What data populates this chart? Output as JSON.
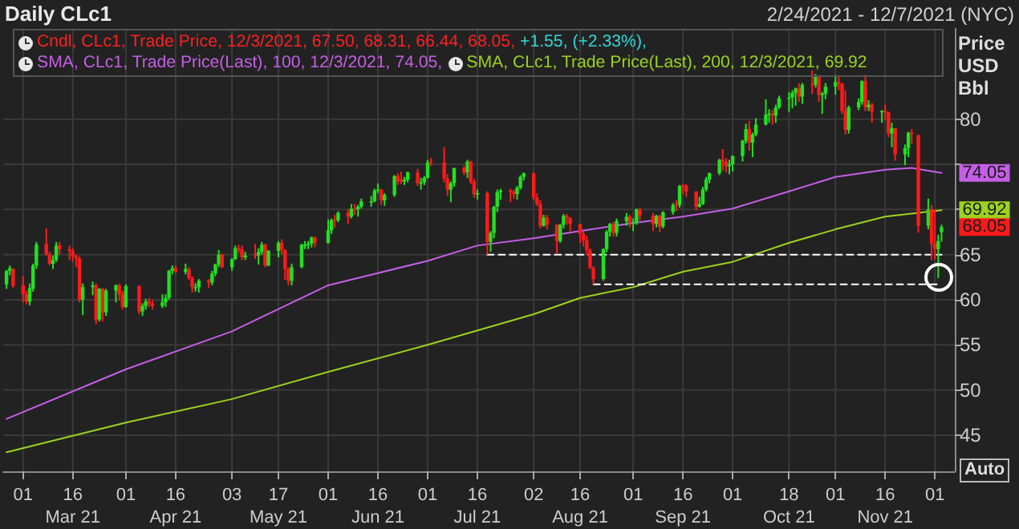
{
  "chart_data": {
    "type": "candlestick",
    "title": "Daily CLc1",
    "subtitle": "2/24/2021 - 12/7/2021 (NYC)",
    "ylabel": "Price USD Bbl",
    "x": [
      "2021-02-24",
      "2021-02-25",
      "2021-02-26",
      "2021-03-01",
      "2021-03-02",
      "2021-03-03",
      "2021-03-04",
      "2021-03-05",
      "2021-03-08",
      "2021-03-09",
      "2021-03-10",
      "2021-03-11",
      "2021-03-12",
      "2021-03-15",
      "2021-03-16",
      "2021-03-17",
      "2021-03-18",
      "2021-03-19",
      "2021-03-22",
      "2021-03-23",
      "2021-03-24",
      "2021-03-25",
      "2021-03-26",
      "2021-03-29",
      "2021-03-30",
      "2021-03-31",
      "2021-04-01",
      "2021-04-05",
      "2021-04-06",
      "2021-04-07",
      "2021-04-08",
      "2021-04-09",
      "2021-04-12",
      "2021-04-13",
      "2021-04-14",
      "2021-04-15",
      "2021-04-16",
      "2021-04-19",
      "2021-04-20",
      "2021-04-21",
      "2021-04-22",
      "2021-04-23",
      "2021-04-26",
      "2021-04-27",
      "2021-04-28",
      "2021-04-29",
      "2021-04-30",
      "2021-05-03",
      "2021-05-04",
      "2021-05-05",
      "2021-05-06",
      "2021-05-07",
      "2021-05-10",
      "2021-05-11",
      "2021-05-12",
      "2021-05-13",
      "2021-05-14",
      "2021-05-17",
      "2021-05-18",
      "2021-05-19",
      "2021-05-20",
      "2021-05-21",
      "2021-05-24",
      "2021-05-25",
      "2021-05-26",
      "2021-05-27",
      "2021-05-28",
      "2021-06-01",
      "2021-06-02",
      "2021-06-03",
      "2021-06-04",
      "2021-06-07",
      "2021-06-08",
      "2021-06-09",
      "2021-06-10",
      "2021-06-11",
      "2021-06-14",
      "2021-06-15",
      "2021-06-16",
      "2021-06-17",
      "2021-06-18",
      "2021-06-21",
      "2021-06-22",
      "2021-06-23",
      "2021-06-24",
      "2021-06-25",
      "2021-06-28",
      "2021-06-29",
      "2021-06-30",
      "2021-07-01",
      "2021-07-02",
      "2021-07-06",
      "2021-07-07",
      "2021-07-08",
      "2021-07-09",
      "2021-07-12",
      "2021-07-13",
      "2021-07-14",
      "2021-07-15",
      "2021-07-16",
      "2021-07-19",
      "2021-07-20",
      "2021-07-21",
      "2021-07-22",
      "2021-07-23",
      "2021-07-26",
      "2021-07-27",
      "2021-07-28",
      "2021-07-29",
      "2021-07-30",
      "2021-08-02",
      "2021-08-03",
      "2021-08-04",
      "2021-08-05",
      "2021-08-06",
      "2021-08-09",
      "2021-08-10",
      "2021-08-11",
      "2021-08-12",
      "2021-08-13",
      "2021-08-16",
      "2021-08-17",
      "2021-08-18",
      "2021-08-19",
      "2021-08-20",
      "2021-08-23",
      "2021-08-24",
      "2021-08-25",
      "2021-08-26",
      "2021-08-27",
      "2021-08-30",
      "2021-08-31",
      "2021-09-01",
      "2021-09-02",
      "2021-09-03",
      "2021-09-07",
      "2021-09-08",
      "2021-09-09",
      "2021-09-10",
      "2021-09-13",
      "2021-09-14",
      "2021-09-15",
      "2021-09-16",
      "2021-09-17",
      "2021-09-20",
      "2021-09-21",
      "2021-09-22",
      "2021-09-23",
      "2021-09-24",
      "2021-09-27",
      "2021-09-28",
      "2021-09-29",
      "2021-09-30",
      "2021-10-01",
      "2021-10-04",
      "2021-10-05",
      "2021-10-06",
      "2021-10-07",
      "2021-10-08",
      "2021-10-11",
      "2021-10-12",
      "2021-10-13",
      "2021-10-14",
      "2021-10-15",
      "2021-10-18",
      "2021-10-19",
      "2021-10-20",
      "2021-10-21",
      "2021-10-22",
      "2021-10-25",
      "2021-10-26",
      "2021-10-27",
      "2021-10-28",
      "2021-10-29",
      "2021-11-01",
      "2021-11-02",
      "2021-11-03",
      "2021-11-04",
      "2021-11-05",
      "2021-11-08",
      "2021-11-09",
      "2021-11-10",
      "2021-11-11",
      "2021-11-12",
      "2021-11-15",
      "2021-11-16",
      "2021-11-17",
      "2021-11-18",
      "2021-11-19",
      "2021-11-22",
      "2021-11-23",
      "2021-11-24",
      "2021-11-26",
      "2021-11-29",
      "2021-11-30",
      "2021-12-01",
      "2021-12-02",
      "2021-12-03"
    ],
    "series": [
      {
        "name": "Cndl, CLc1, Trade Price, 12/3/2021, 67.50, 68.31, 66.44, 68.05,",
        "ohlc": [
          [
            61.7,
            63.3,
            61.2,
            63.2
          ],
          [
            63.2,
            63.8,
            62.7,
            63.5
          ],
          [
            63.4,
            63.5,
            61.3,
            61.5
          ],
          [
            61.6,
            62.6,
            59.7,
            60.6
          ],
          [
            60.6,
            61.0,
            59.5,
            59.8
          ],
          [
            59.8,
            61.8,
            59.4,
            61.3
          ],
          [
            61.2,
            64.0,
            60.9,
            63.8
          ],
          [
            63.8,
            66.4,
            63.4,
            66.1
          ],
          [
            66.2,
            67.9,
            64.9,
            65.0
          ],
          [
            65.0,
            65.3,
            63.8,
            64.0
          ],
          [
            64.0,
            64.9,
            63.4,
            64.4
          ],
          [
            64.4,
            66.4,
            64.2,
            66.0
          ],
          [
            66.0,
            66.4,
            65.0,
            65.6
          ],
          [
            65.6,
            66.0,
            64.4,
            65.4
          ],
          [
            65.4,
            65.7,
            64.2,
            64.8
          ],
          [
            64.8,
            65.0,
            63.6,
            64.6
          ],
          [
            64.6,
            64.8,
            59.7,
            60.0
          ],
          [
            60.0,
            61.8,
            58.3,
            61.4
          ],
          [
            61.4,
            62.0,
            60.5,
            61.6
          ],
          [
            61.6,
            61.8,
            57.3,
            57.8
          ],
          [
            57.8,
            61.3,
            57.6,
            61.2
          ],
          [
            61.2,
            61.3,
            57.6,
            58.6
          ],
          [
            58.6,
            61.2,
            58.2,
            61.0
          ],
          [
            61.0,
            61.7,
            59.7,
            61.6
          ],
          [
            61.6,
            61.8,
            59.9,
            60.6
          ],
          [
            60.6,
            61.0,
            58.9,
            59.2
          ],
          [
            59.2,
            61.7,
            59.1,
            61.5
          ],
          [
            61.5,
            61.6,
            58.4,
            58.7
          ],
          [
            58.7,
            59.6,
            58.2,
            59.3
          ],
          [
            59.3,
            60.1,
            58.9,
            59.8
          ],
          [
            59.8,
            60.2,
            59.2,
            59.6
          ],
          [
            59.6,
            60.0,
            58.9,
            59.3
          ],
          [
            59.3,
            60.6,
            59.1,
            59.7
          ],
          [
            59.7,
            60.6,
            59.2,
            60.2
          ],
          [
            60.2,
            63.3,
            60.0,
            63.2
          ],
          [
            63.2,
            63.8,
            62.8,
            63.5
          ],
          [
            63.5,
            63.8,
            62.9,
            63.1
          ],
          [
            63.1,
            64.0,
            62.8,
            63.4
          ],
          [
            63.4,
            63.6,
            62.2,
            62.4
          ],
          [
            62.4,
            62.6,
            60.8,
            61.4
          ],
          [
            61.3,
            61.8,
            60.9,
            61.4
          ],
          [
            61.4,
            62.3,
            60.8,
            62.1
          ],
          [
            62.1,
            62.3,
            61.3,
            61.9
          ],
          [
            61.9,
            63.2,
            61.6,
            62.9
          ],
          [
            62.9,
            64.0,
            62.6,
            63.9
          ],
          [
            63.9,
            65.5,
            63.6,
            65.0
          ],
          [
            65.0,
            65.1,
            63.5,
            63.6
          ],
          [
            63.6,
            64.6,
            63.2,
            64.5
          ],
          [
            64.5,
            66.0,
            64.4,
            65.7
          ],
          [
            65.7,
            66.1,
            65.2,
            65.6
          ],
          [
            65.6,
            66.0,
            64.4,
            64.7
          ],
          [
            64.7,
            65.3,
            64.4,
            64.9
          ],
          [
            65.0,
            66.2,
            64.5,
            64.9
          ],
          [
            64.9,
            65.7,
            63.9,
            65.3
          ],
          [
            65.3,
            66.4,
            65.0,
            66.1
          ],
          [
            66.1,
            66.2,
            63.6,
            63.8
          ],
          [
            63.8,
            65.5,
            63.7,
            65.4
          ],
          [
            65.4,
            66.5,
            64.7,
            66.3
          ],
          [
            66.3,
            66.7,
            65.0,
            65.5
          ],
          [
            65.5,
            65.6,
            62.2,
            63.4
          ],
          [
            63.4,
            63.6,
            61.6,
            62.1
          ],
          [
            62.1,
            64.0,
            61.6,
            63.6
          ],
          [
            63.6,
            66.2,
            63.5,
            66.1
          ],
          [
            66.0,
            66.5,
            65.6,
            66.1
          ],
          [
            66.1,
            66.5,
            65.6,
            66.2
          ],
          [
            66.2,
            67.0,
            65.8,
            66.9
          ],
          [
            66.9,
            67.0,
            65.8,
            66.3
          ],
          [
            66.3,
            68.9,
            66.2,
            67.7
          ],
          [
            67.7,
            69.0,
            67.3,
            68.8
          ],
          [
            68.9,
            69.4,
            68.0,
            68.8
          ],
          [
            68.8,
            69.8,
            68.6,
            69.6
          ],
          [
            69.6,
            70.0,
            68.4,
            69.2
          ],
          [
            69.2,
            70.6,
            69.0,
            70.1
          ],
          [
            70.1,
            70.6,
            69.4,
            70.0
          ],
          [
            70.0,
            70.5,
            69.2,
            70.3
          ],
          [
            70.3,
            71.2,
            70.1,
            70.9
          ],
          [
            70.8,
            71.5,
            70.3,
            70.9
          ],
          [
            70.9,
            72.3,
            70.8,
            72.1
          ],
          [
            72.1,
            72.9,
            71.8,
            72.2
          ],
          [
            72.2,
            72.3,
            70.5,
            71.0
          ],
          [
            71.0,
            71.8,
            70.4,
            71.6
          ],
          [
            71.6,
            73.8,
            71.4,
            73.7
          ],
          [
            73.7,
            74.0,
            72.7,
            73.1
          ],
          [
            73.3,
            74.2,
            72.8,
            73.1
          ],
          [
            73.1,
            73.6,
            72.7,
            73.3
          ],
          [
            73.3,
            74.2,
            73.0,
            74.1
          ],
          [
            74.1,
            74.5,
            72.6,
            72.9
          ],
          [
            72.9,
            73.5,
            72.2,
            73.0
          ],
          [
            73.0,
            73.7,
            72.7,
            73.5
          ],
          [
            73.5,
            75.5,
            73.4,
            75.2
          ],
          [
            75.3,
            75.7,
            74.8,
            75.2
          ],
          [
            75.2,
            76.9,
            73.0,
            73.4
          ],
          [
            73.4,
            73.9,
            71.5,
            72.2
          ],
          [
            72.2,
            73.1,
            70.8,
            72.9
          ],
          [
            72.9,
            74.6,
            72.5,
            74.6
          ],
          [
            74.6,
            74.8,
            73.8,
            74.1
          ],
          [
            74.1,
            75.5,
            73.5,
            75.3
          ],
          [
            75.3,
            75.4,
            72.8,
            73.1
          ],
          [
            73.1,
            73.4,
            71.3,
            71.7
          ],
          [
            71.7,
            72.2,
            71.1,
            71.8
          ],
          [
            71.8,
            72.0,
            65.0,
            66.4
          ],
          [
            66.4,
            67.6,
            65.3,
            67.4
          ],
          [
            67.4,
            70.4,
            66.8,
            70.3
          ],
          [
            70.3,
            72.2,
            69.7,
            71.9
          ],
          [
            71.9,
            72.3,
            71.1,
            72.1
          ],
          [
            72.1,
            72.3,
            70.8,
            71.9
          ],
          [
            71.9,
            72.2,
            71.2,
            71.7
          ],
          [
            71.7,
            72.6,
            71.1,
            72.4
          ],
          [
            72.4,
            73.8,
            72.2,
            73.6
          ],
          [
            73.6,
            74.1,
            73.2,
            74.0
          ],
          [
            74.0,
            74.1,
            71.0,
            71.3
          ],
          [
            71.3,
            71.8,
            70.4,
            70.6
          ],
          [
            70.6,
            71.0,
            67.9,
            68.2
          ],
          [
            68.2,
            69.4,
            68.1,
            69.1
          ],
          [
            69.1,
            69.4,
            67.8,
            68.3
          ],
          [
            68.3,
            68.4,
            65.1,
            66.5
          ],
          [
            66.5,
            68.4,
            66.3,
            68.3
          ],
          [
            68.3,
            69.5,
            67.9,
            69.3
          ],
          [
            69.3,
            69.5,
            68.3,
            69.1
          ],
          [
            69.1,
            69.1,
            67.6,
            68.4
          ],
          [
            68.4,
            68.4,
            66.3,
            67.3
          ],
          [
            67.3,
            67.6,
            65.9,
            66.6
          ],
          [
            66.6,
            67.1,
            65.0,
            65.5
          ],
          [
            65.5,
            65.7,
            63.4,
            63.5
          ],
          [
            63.5,
            63.7,
            61.7,
            62.3
          ],
          [
            62.3,
            65.7,
            62.1,
            65.6
          ],
          [
            65.6,
            67.7,
            65.3,
            67.5
          ],
          [
            67.5,
            68.5,
            67.0,
            68.4
          ],
          [
            68.4,
            68.6,
            67.0,
            67.4
          ],
          [
            67.4,
            69.0,
            67.0,
            68.7
          ],
          [
            68.7,
            69.6,
            68.2,
            69.2
          ],
          [
            69.2,
            69.4,
            68.0,
            68.5
          ],
          [
            68.5,
            69.0,
            67.6,
            68.6
          ],
          [
            68.6,
            70.1,
            68.3,
            70.0
          ],
          [
            70.0,
            70.2,
            68.8,
            69.3
          ],
          [
            69.3,
            69.6,
            67.6,
            68.4
          ],
          [
            68.4,
            69.4,
            68.0,
            69.3
          ],
          [
            69.3,
            69.4,
            67.5,
            68.1
          ],
          [
            68.1,
            69.8,
            67.9,
            69.7
          ],
          [
            69.7,
            70.7,
            69.4,
            70.5
          ],
          [
            70.6,
            71.0,
            69.8,
            70.5
          ],
          [
            70.5,
            72.7,
            70.2,
            72.6
          ],
          [
            72.7,
            72.8,
            71.7,
            72.6
          ],
          [
            72.6,
            72.8,
            71.4,
            72.0
          ],
          [
            72.0,
            72.0,
            69.9,
            70.3
          ],
          [
            70.3,
            71.4,
            70.2,
            70.6
          ],
          [
            70.6,
            72.5,
            70.5,
            72.2
          ],
          [
            72.2,
            73.6,
            72.0,
            73.3
          ],
          [
            73.3,
            74.1,
            72.9,
            74.0
          ],
          [
            74.0,
            75.6,
            73.8,
            75.5
          ],
          [
            75.5,
            76.7,
            74.3,
            75.3
          ],
          [
            75.3,
            75.7,
            74.1,
            74.8
          ],
          [
            74.8,
            75.5,
            73.9,
            75.0
          ],
          [
            75.0,
            76.0,
            74.2,
            75.9
          ],
          [
            75.9,
            77.7,
            75.3,
            77.6
          ],
          [
            77.6,
            79.5,
            77.3,
            78.9
          ],
          [
            78.9,
            79.8,
            76.5,
            77.4
          ],
          [
            77.4,
            78.5,
            75.8,
            78.3
          ],
          [
            78.3,
            80.1,
            78.1,
            79.4
          ],
          [
            79.4,
            82.2,
            79.3,
            80.5
          ],
          [
            80.5,
            81.1,
            79.6,
            80.6
          ],
          [
            80.6,
            81.0,
            79.4,
            80.4
          ],
          [
            80.4,
            81.6,
            79.6,
            81.3
          ],
          [
            81.3,
            82.6,
            81.1,
            82.3
          ],
          [
            82.3,
            83.0,
            80.8,
            82.4
          ],
          [
            82.4,
            83.2,
            81.2,
            82.9
          ],
          [
            82.9,
            83.5,
            81.5,
            83.4
          ],
          [
            83.4,
            84.0,
            81.9,
            82.5
          ],
          [
            82.5,
            84.0,
            81.7,
            83.8
          ],
          [
            83.9,
            85.4,
            82.8,
            83.8
          ],
          [
            83.8,
            85.0,
            83.5,
            84.7
          ],
          [
            84.7,
            84.8,
            81.9,
            82.7
          ],
          [
            82.7,
            83.0,
            80.6,
            82.8
          ],
          [
            82.8,
            84.0,
            82.2,
            83.6
          ],
          [
            83.6,
            84.9,
            82.7,
            84.1
          ],
          [
            84.1,
            84.7,
            83.2,
            83.9
          ],
          [
            83.9,
            84.0,
            80.6,
            80.9
          ],
          [
            80.9,
            83.2,
            78.3,
            78.8
          ],
          [
            78.8,
            81.5,
            78.4,
            81.3
          ],
          [
            81.3,
            82.3,
            81.0,
            81.9
          ],
          [
            81.9,
            84.3,
            81.6,
            84.2
          ],
          [
            84.2,
            84.9,
            80.9,
            81.3
          ],
          [
            81.3,
            82.1,
            80.9,
            81.6
          ],
          [
            81.6,
            81.8,
            79.6,
            80.8
          ],
          [
            80.8,
            81.0,
            79.6,
            80.9
          ],
          [
            80.9,
            81.6,
            79.9,
            80.8
          ],
          [
            80.8,
            80.8,
            78.0,
            78.4
          ],
          [
            78.4,
            79.6,
            76.9,
            79.0
          ],
          [
            79.0,
            79.0,
            75.4,
            76.1
          ],
          [
            76.1,
            77.2,
            74.9,
            76.8
          ],
          [
            76.8,
            78.6,
            75.8,
            78.5
          ],
          [
            78.5,
            78.9,
            77.3,
            78.4
          ],
          [
            78.2,
            78.3,
            67.4,
            68.2
          ],
          [
            68.2,
            71.2,
            67.8,
            70.0
          ],
          [
            70.0,
            70.5,
            64.4,
            66.2
          ],
          [
            66.2,
            70.0,
            64.5,
            65.6
          ],
          [
            65.6,
            67.2,
            62.4,
            66.5
          ],
          [
            67.5,
            68.31,
            66.44,
            68.05
          ]
        ],
        "colors": [
          "#22e022",
          "#22e022",
          "#ff1a1a",
          "#ff1a1a",
          "#ff1a1a",
          "#22e022",
          "#22e022",
          "#22e022",
          "#ff1a1a",
          "#ff1a1a",
          "#22e022",
          "#22e022",
          "#ff1a1a",
          "#ff1a1a",
          "#ff1a1a",
          "#ff1a1a",
          "#ff1a1a",
          "#22e022",
          "#22e022",
          "#ff1a1a",
          "#22e022",
          "#ff1a1a",
          "#22e022",
          "#22e022",
          "#ff1a1a",
          "#ff1a1a",
          "#22e022",
          "#ff1a1a",
          "#22e022",
          "#22e022",
          "#ff1a1a",
          "#ff1a1a",
          "#22e022",
          "#22e022",
          "#22e022",
          "#22e022",
          "#ff1a1a",
          "#22e022",
          "#ff1a1a",
          "#ff1a1a",
          "#22e022",
          "#22e022",
          "#ff1a1a",
          "#22e022",
          "#22e022",
          "#22e022",
          "#ff1a1a",
          "#22e022",
          "#22e022",
          "#ff1a1a",
          "#ff1a1a",
          "#22e022",
          "#ff1a1a",
          "#22e022",
          "#22e022",
          "#ff1a1a",
          "#22e022",
          "#22e022",
          "#ff1a1a",
          "#ff1a1a",
          "#ff1a1a",
          "#22e022",
          "#22e022",
          "#22e022",
          "#22e022",
          "#22e022",
          "#ff1a1a",
          "#22e022",
          "#22e022",
          "#ff1a1a",
          "#22e022",
          "#ff1a1a",
          "#22e022",
          "#ff1a1a",
          "#22e022",
          "#22e022",
          "#22e022",
          "#22e022",
          "#22e022",
          "#ff1a1a",
          "#22e022",
          "#22e022",
          "#ff1a1a",
          "#ff1a1a",
          "#22e022",
          "#22e022",
          "#ff1a1a",
          "#22e022",
          "#22e022",
          "#22e022",
          "#ff1a1a",
          "#ff1a1a",
          "#ff1a1a",
          "#22e022",
          "#22e022",
          "#ff1a1a",
          "#22e022",
          "#ff1a1a",
          "#ff1a1a",
          "#22e022",
          "#ff1a1a",
          "#22e022",
          "#22e022",
          "#22e022",
          "#22e022",
          "#ff1a1a",
          "#ff1a1a",
          "#22e022",
          "#22e022",
          "#22e022",
          "#ff1a1a",
          "#ff1a1a",
          "#ff1a1a",
          "#22e022",
          "#ff1a1a",
          "#ff1a1a",
          "#22e022",
          "#22e022",
          "#ff1a1a",
          "#ff1a1a",
          "#ff1a1a",
          "#ff1a1a",
          "#ff1a1a",
          "#ff1a1a",
          "#ff1a1a",
          "#22e022",
          "#22e022",
          "#22e022",
          "#ff1a1a",
          "#22e022",
          "#22e022",
          "#ff1a1a",
          "#22e022",
          "#22e022",
          "#ff1a1a",
          "#ff1a1a",
          "#22e022",
          "#ff1a1a",
          "#22e022",
          "#22e022",
          "#ff1a1a",
          "#22e022",
          "#ff1a1a",
          "#ff1a1a",
          "#ff1a1a",
          "#22e022",
          "#22e022",
          "#22e022",
          "#22e022",
          "#22e022",
          "#ff1a1a",
          "#ff1a1a",
          "#22e022",
          "#22e022",
          "#22e022",
          "#22e022",
          "#ff1a1a",
          "#22e022",
          "#22e022",
          "#22e022",
          "#22e022",
          "#ff1a1a",
          "#22e022",
          "#22e022",
          "#22e022",
          "#22e022",
          "#22e022",
          "#ff1a1a",
          "#22e022",
          "#ff1a1a",
          "#22e022",
          "#ff1a1a",
          "#22e022",
          "#22e022",
          "#22e022",
          "#ff1a1a",
          "#ff1a1a",
          "#ff1a1a",
          "#22e022",
          "#22e022",
          "#22e022",
          "#ff1a1a",
          "#22e022",
          "#ff1a1a",
          "#22e022",
          "#ff1a1a",
          "#ff1a1a",
          "#22e022",
          "#ff1a1a",
          "#22e022",
          "#22e022",
          "#ff1a1a",
          "#ff1a1a",
          "#22e022",
          "#ff1a1a",
          "#ff1a1a",
          "#22e022",
          "#22e022"
        ]
      },
      {
        "type": "line",
        "name": "SMA, CLc1, Trade Price(Last), 100, 12/3/2021, 74.05,",
        "color": "#c55ee6",
        "x": [
          "2021-02-24",
          "2021-04-01",
          "2021-05-03",
          "2021-06-01",
          "2021-07-01",
          "2021-07-16",
          "2021-08-02",
          "2021-08-16",
          "2021-09-01",
          "2021-09-16",
          "2021-10-01",
          "2021-10-18",
          "2021-11-01",
          "2021-11-16",
          "2021-11-24",
          "2021-12-03"
        ],
        "values": [
          46.8,
          52.3,
          56.5,
          61.6,
          64.3,
          66.0,
          66.8,
          67.6,
          68.5,
          69.2,
          70.1,
          72.0,
          73.6,
          74.4,
          74.6,
          74.05
        ],
        "value_labels": [
          null,
          null,
          null,
          null,
          null,
          null,
          null,
          null,
          null,
          null,
          null,
          null,
          null,
          null,
          null,
          "74.05"
        ]
      },
      {
        "type": "line",
        "name": "SMA, CLc1, Trade Price(Last), 200, 12/3/2021, 69.92",
        "color": "#9bd21e",
        "x": [
          "2021-02-24",
          "2021-04-01",
          "2021-05-03",
          "2021-06-01",
          "2021-07-01",
          "2021-08-02",
          "2021-08-16",
          "2021-09-01",
          "2021-09-16",
          "2021-10-01",
          "2021-10-18",
          "2021-11-01",
          "2021-11-16",
          "2021-12-03"
        ],
        "values": [
          43.1,
          46.4,
          49.0,
          52.0,
          55.0,
          58.4,
          60.2,
          61.4,
          63.1,
          64.2,
          66.3,
          67.8,
          69.2,
          69.92
        ],
        "value_labels": [
          null,
          null,
          null,
          null,
          null,
          null,
          null,
          null,
          null,
          null,
          null,
          null,
          null,
          "69.92"
        ]
      },
      {
        "type": "line",
        "color": "#ffffff",
        "line_style": "dashed",
        "x": [
          "2021-07-19",
          "2021-12-03"
        ],
        "values": [
          65.0,
          65.0
        ]
      },
      {
        "type": "line",
        "color": "#ffffff",
        "line_style": "dashed",
        "x": [
          "2021-08-20",
          "2021-12-03"
        ],
        "values": [
          61.7,
          61.7
        ]
      }
    ],
    "xlim": [
      "2021-02-23",
      "2021-12-07"
    ],
    "ylim": [
      41,
      90
    ],
    "yticks": [
      45,
      50,
      55,
      60,
      65,
      {
        "value": 70,
        "label": null
      },
      {
        "value": 75,
        "label": null
      },
      80
    ],
    "xticks": [
      {
        "value": "2021-03-01",
        "label": "01"
      },
      {
        "value": "2021-03-16",
        "label": "16\nMar 21"
      },
      {
        "value": "2021-04-01",
        "label": "01"
      },
      {
        "value": "2021-04-16",
        "label": "16\nApr 21"
      },
      {
        "value": "2021-05-03",
        "label": "03"
      },
      {
        "value": "2021-05-17",
        "label": "17\nMay 21"
      },
      {
        "value": "2021-06-01",
        "label": "01"
      },
      {
        "value": "2021-06-16",
        "label": "16\nJun 21"
      },
      {
        "value": "2021-07-01",
        "label": "01"
      },
      {
        "value": "2021-07-16",
        "label": "16\nJul 21"
      },
      {
        "value": "2021-08-02",
        "label": "02"
      },
      {
        "value": "2021-08-16",
        "label": "16\nAug 21"
      },
      {
        "value": "2021-09-01",
        "label": "01"
      },
      {
        "value": "2021-09-16",
        "label": "16\nSep 21"
      },
      {
        "value": "2021-10-01",
        "label": "01"
      },
      {
        "value": "2021-10-18",
        "label": "18\nOct 21"
      },
      {
        "value": "2021-11-01",
        "label": "01"
      },
      {
        "value": "2021-11-16",
        "label": "16\nNov 21"
      },
      {
        "value": "2021-12-01",
        "label": "01"
      }
    ],
    "grid": true,
    "legend": "top left",
    "marker": "none",
    "annotations": [
      "+1.55, (+2.33%),",
      "Auto",
      {
        "text": "68.05",
        "x": "2021-12-03",
        "y": 68.05
      }
    ]
  }
}
